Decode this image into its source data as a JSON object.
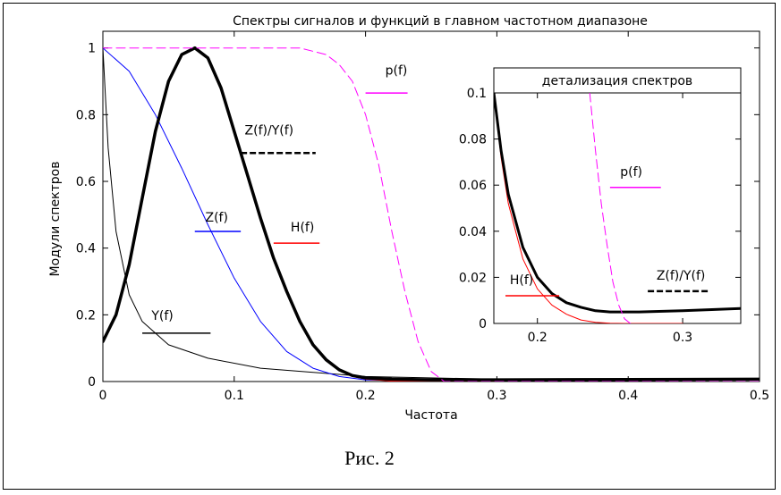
{
  "figure": {
    "caption": "Рис. 2"
  },
  "chart_data": [
    {
      "type": "line",
      "title": "Спектры сигналов и функций в главном частотном диапазоне",
      "xlabel": "Частота",
      "ylabel": "Модули спектров",
      "xlim": [
        0,
        0.5
      ],
      "ylim": [
        0,
        1.05
      ],
      "x_ticks": [
        0,
        0.1,
        0.2,
        0.3,
        0.4,
        0.5
      ],
      "y_ticks": [
        0,
        0.2,
        0.4,
        0.6,
        0.8,
        1
      ],
      "x_tick_labels": [
        "0",
        "0.1",
        "0.2",
        "0.3",
        "0.4",
        "0.5"
      ],
      "y_tick_labels": [
        "0",
        "0.2",
        "0.4",
        "0.6",
        "0.8",
        "1"
      ],
      "grid": false,
      "series": [
        {
          "name": "Y(f)",
          "color": "#000000",
          "style": "solid",
          "width": 1,
          "x": [
            0,
            0.004,
            0.01,
            0.02,
            0.03,
            0.05,
            0.08,
            0.12,
            0.2,
            0.3,
            0.5
          ],
          "y": [
            1,
            0.7,
            0.45,
            0.26,
            0.18,
            0.11,
            0.07,
            0.04,
            0.015,
            0.007,
            0.004
          ]
        },
        {
          "name": "Z(f)",
          "color": "#0000ff",
          "style": "solid",
          "width": 1,
          "x": [
            0,
            0.02,
            0.04,
            0.06,
            0.08,
            0.1,
            0.12,
            0.14,
            0.16,
            0.18,
            0.2,
            0.25,
            0.3
          ],
          "y": [
            1,
            0.93,
            0.8,
            0.64,
            0.47,
            0.31,
            0.18,
            0.09,
            0.04,
            0.015,
            0.005,
            0.001,
            0
          ]
        },
        {
          "name": "H(f)",
          "color": "#ff0000",
          "style": "solid",
          "width": 1.5,
          "x": [
            0,
            0.01,
            0.02,
            0.03,
            0.04,
            0.05,
            0.06,
            0.07,
            0.08,
            0.09,
            0.1,
            0.11,
            0.12,
            0.13,
            0.14,
            0.15,
            0.16,
            0.17,
            0.18,
            0.19,
            0.2,
            0.22,
            0.25,
            0.3
          ],
          "y": [
            0.12,
            0.2,
            0.35,
            0.55,
            0.75,
            0.9,
            0.98,
            1,
            0.97,
            0.88,
            0.75,
            0.62,
            0.49,
            0.37,
            0.27,
            0.18,
            0.11,
            0.065,
            0.035,
            0.016,
            0.008,
            0.002,
            0.0005,
            0
          ]
        },
        {
          "name": "Z(f)/Y(f)",
          "color": "#000000",
          "style": "solid",
          "width": 3.5,
          "x": [
            0,
            0.01,
            0.02,
            0.03,
            0.04,
            0.05,
            0.06,
            0.07,
            0.08,
            0.09,
            0.1,
            0.11,
            0.12,
            0.13,
            0.14,
            0.15,
            0.16,
            0.17,
            0.18,
            0.19,
            0.2,
            0.22,
            0.25,
            0.3,
            0.4,
            0.5
          ],
          "y": [
            0.12,
            0.2,
            0.35,
            0.55,
            0.75,
            0.9,
            0.98,
            1,
            0.97,
            0.88,
            0.75,
            0.62,
            0.49,
            0.37,
            0.27,
            0.18,
            0.11,
            0.065,
            0.035,
            0.018,
            0.011,
            0.007,
            0.005,
            0.005,
            0.006,
            0.007
          ]
        },
        {
          "name": "p(f)",
          "color": "#ff00ff",
          "style": "dashed",
          "width": 1,
          "x": [
            0,
            0.1,
            0.15,
            0.17,
            0.18,
            0.19,
            0.2,
            0.21,
            0.22,
            0.23,
            0.24,
            0.25,
            0.26,
            0.5
          ],
          "y": [
            1,
            1,
            1,
            0.98,
            0.95,
            0.9,
            0.8,
            0.65,
            0.45,
            0.27,
            0.12,
            0.03,
            0,
            0
          ]
        }
      ],
      "labels": [
        {
          "text": "p(f)",
          "x": 0.215,
          "y": 0.92,
          "lx": [
            0.2,
            0.232
          ],
          "ly": 0.865,
          "color": "#ff00ff"
        },
        {
          "text": "Z(f)/Y(f)",
          "x": 0.108,
          "y": 0.74,
          "lx": [
            0.105,
            0.162
          ],
          "ly": 0.685,
          "color": "#000000"
        },
        {
          "text": "Z(f)",
          "x": 0.078,
          "y": 0.48,
          "lx": [
            0.07,
            0.105
          ],
          "ly": 0.45,
          "color": "#0000ff"
        },
        {
          "text": "H(f)",
          "x": 0.143,
          "y": 0.45,
          "lx": [
            0.13,
            0.165
          ],
          "ly": 0.415,
          "color": "#ff0000"
        },
        {
          "text": "Y(f)",
          "x": 0.037,
          "y": 0.185,
          "lx": [
            0.03,
            0.082
          ],
          "ly": 0.145,
          "color": "#000000"
        }
      ]
    },
    {
      "type": "line",
      "title": "детализация спектров",
      "xlim": [
        0.17,
        0.34
      ],
      "ylim": [
        0,
        0.1
      ],
      "x_ticks": [
        0.2,
        0.3
      ],
      "y_ticks": [
        0,
        0.02,
        0.04,
        0.06,
        0.08,
        0.1
      ],
      "x_tick_labels": [
        "0.2",
        "0.3"
      ],
      "y_tick_labels": [
        "0",
        "0.02",
        "0.04",
        "0.06",
        "0.08",
        "0.1"
      ],
      "grid": false,
      "series": [
        {
          "name": "H(f)",
          "color": "#ff0000",
          "style": "solid",
          "width": 1,
          "x": [
            0.17,
            0.175,
            0.18,
            0.19,
            0.2,
            0.21,
            0.22,
            0.23,
            0.24,
            0.25,
            0.26,
            0.28,
            0.3
          ],
          "y": [
            0.1,
            0.072,
            0.052,
            0.028,
            0.015,
            0.008,
            0.004,
            0.0015,
            0.0005,
            0.0001,
            0,
            0,
            0
          ]
        },
        {
          "name": "Z(f)/Y(f)",
          "color": "#000000",
          "style": "solid",
          "width": 3,
          "x": [
            0.17,
            0.175,
            0.18,
            0.19,
            0.2,
            0.21,
            0.22,
            0.23,
            0.24,
            0.25,
            0.27,
            0.3,
            0.34
          ],
          "y": [
            0.1,
            0.075,
            0.056,
            0.033,
            0.02,
            0.013,
            0.009,
            0.007,
            0.0055,
            0.005,
            0.005,
            0.0055,
            0.0065
          ]
        },
        {
          "name": "p(f)",
          "color": "#ff00ff",
          "style": "dashed",
          "width": 1,
          "x": [
            0.236,
            0.24,
            0.244,
            0.248,
            0.252,
            0.256,
            0.26,
            0.264
          ],
          "y": [
            0.1,
            0.075,
            0.052,
            0.034,
            0.018,
            0.008,
            0.002,
            0
          ]
        }
      ],
      "labels": [
        {
          "text": "H(f)",
          "x": 0.181,
          "y": 0.017,
          "lx": [
            0.178,
            0.215
          ],
          "ly": 0.012,
          "color": "#ff0000"
        },
        {
          "text": "p(f)",
          "x": 0.257,
          "y": 0.064,
          "lx": [
            0.25,
            0.285
          ],
          "ly": 0.059,
          "color": "#ff00ff"
        },
        {
          "text": "Z(f)/Y(f)",
          "x": 0.282,
          "y": 0.019,
          "lx": [
            0.276,
            0.318
          ],
          "ly": 0.014,
          "color": "#000000"
        }
      ]
    }
  ]
}
